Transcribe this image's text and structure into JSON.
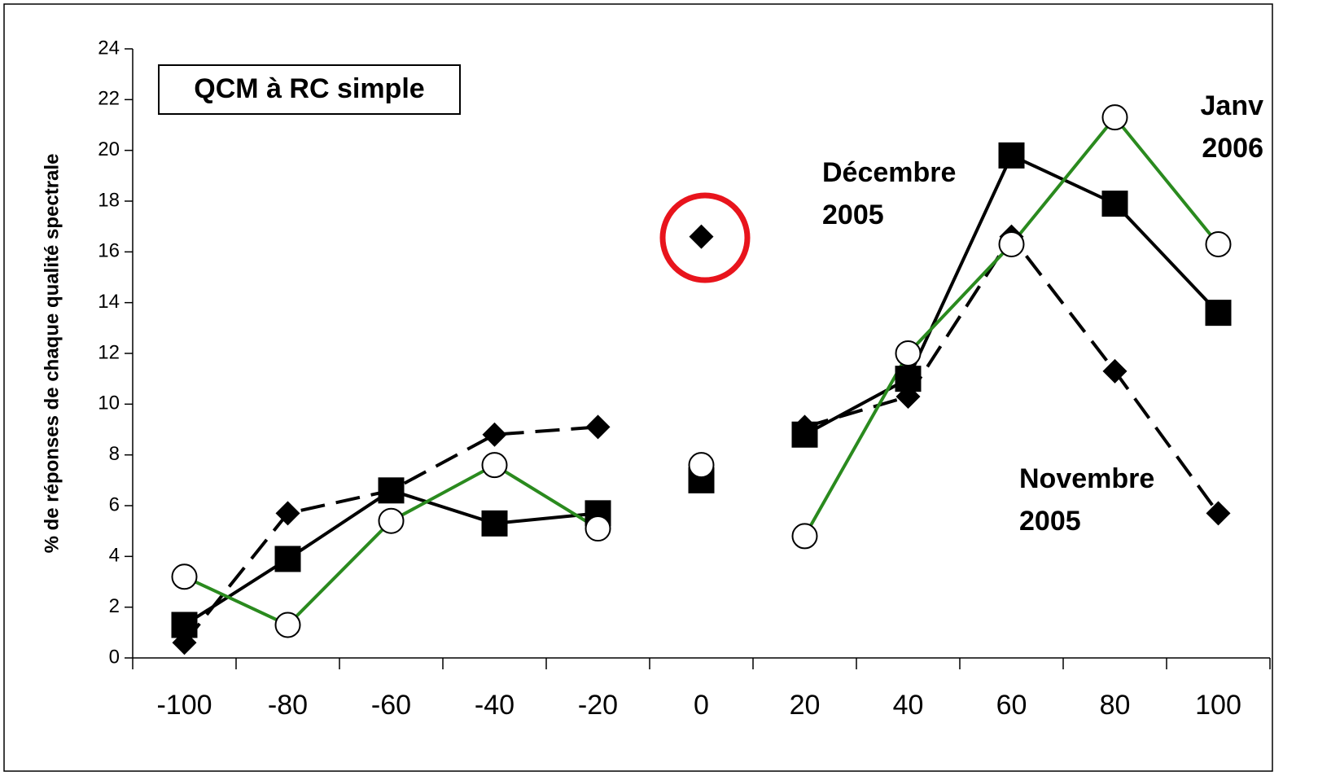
{
  "chart_data": {
    "type": "line",
    "title": "QCM à RC simple",
    "y_label": "% de réponses de chaque qualité spectrale",
    "categories": [
      "-100",
      "-80",
      "-60",
      "-40",
      "-20",
      "0",
      "20",
      "40",
      "60",
      "80",
      "100"
    ],
    "ylim": [
      0,
      24
    ],
    "yticks": [
      0,
      2,
      4,
      6,
      8,
      10,
      12,
      14,
      16,
      18,
      20,
      22,
      24
    ],
    "grid": false,
    "series": [
      {
        "name": "Novembre 2005",
        "color": "#000000",
        "marker": "diamond",
        "dash": true,
        "values": [
          0.6,
          5.7,
          6.6,
          8.8,
          9.1,
          16.6,
          9.1,
          10.3,
          16.6,
          11.3,
          5.7
        ]
      },
      {
        "name": "Décembre 2005",
        "color": "#000000",
        "marker": "square",
        "dash": false,
        "values": [
          1.3,
          3.9,
          6.6,
          5.3,
          5.7,
          7.0,
          8.8,
          11.0,
          19.8,
          17.9,
          13.6
        ]
      },
      {
        "name": "Janv 2006",
        "color": "#2a8a1e",
        "marker": "circle",
        "dash": false,
        "values": [
          3.2,
          1.3,
          5.4,
          7.6,
          5.1,
          7.6,
          4.8,
          12.0,
          16.3,
          21.3,
          16.3
        ]
      }
    ]
  }
}
